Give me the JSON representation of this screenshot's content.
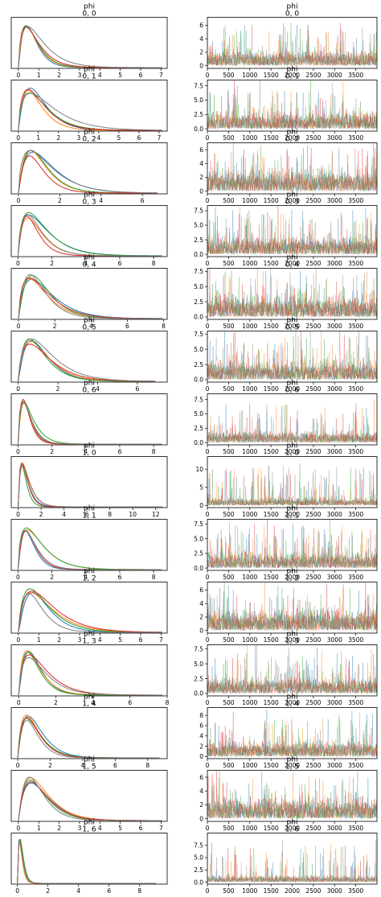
{
  "chart_data": {
    "type": "line",
    "variable": "phi",
    "series_colors": [
      "#1f77b4",
      "#ff7f0e",
      "#2ca02c",
      "#d62728",
      "#7f7f7f"
    ],
    "rows": [
      {
        "coords": "0, 0",
        "kde_xticks": [
          "0",
          "1",
          "2",
          "3",
          "4",
          "5",
          "6",
          "7"
        ],
        "kde_xlim": [
          -0.35,
          7.3
        ],
        "kde_peak": 0.4,
        "trace_yticks": [
          "0",
          "2",
          "4",
          "6"
        ],
        "trace_ylim": [
          -0.4,
          7.2
        ]
      },
      {
        "coords": "0, 1",
        "kde_xticks": [
          "0",
          "1",
          "2",
          "3",
          "4",
          "5",
          "6",
          "7"
        ],
        "kde_xlim": [
          -0.35,
          7.4
        ],
        "kde_peak": 0.55,
        "trace_yticks": [
          "0.0",
          "2.5",
          "5.0",
          "7.5"
        ],
        "trace_ylim": [
          -0.4,
          8.5
        ]
      },
      {
        "coords": "0, 2",
        "kde_xticks": [
          "0",
          "2",
          "4",
          "6"
        ],
        "kde_xlim": [
          -0.35,
          7.2
        ],
        "kde_peak": 0.6,
        "trace_yticks": [
          "0",
          "2",
          "4",
          "6"
        ],
        "trace_ylim": [
          -0.4,
          7.0
        ]
      },
      {
        "coords": "0, 3",
        "kde_xticks": [
          "0",
          "2",
          "4",
          "6",
          "8"
        ],
        "kde_xlim": [
          -0.4,
          8.8
        ],
        "kde_peak": 0.6,
        "trace_yticks": [
          "0.0",
          "2.5",
          "5.0",
          "7.5"
        ],
        "trace_ylim": [
          -0.4,
          8.4
        ]
      },
      {
        "coords": "0, 4",
        "kde_xticks": [
          "0",
          "2",
          "4",
          "6",
          "8"
        ],
        "kde_xlim": [
          -0.4,
          8.2
        ],
        "kde_peak": 0.7,
        "trace_yticks": [
          "0.0",
          "2.5",
          "5.0",
          "7.5"
        ],
        "trace_ylim": [
          -0.4,
          8.0
        ]
      },
      {
        "coords": "0, 5",
        "kde_xticks": [
          "0",
          "2",
          "4",
          "6"
        ],
        "kde_xlim": [
          -0.35,
          7.5
        ],
        "kde_peak": 0.6,
        "trace_yticks": [
          "0.0",
          "2.5",
          "5.0",
          "7.5"
        ],
        "trace_ylim": [
          -0.4,
          8.0
        ]
      },
      {
        "coords": "0, 6",
        "kde_xticks": [
          "0",
          "2",
          "4",
          "6",
          "8"
        ],
        "kde_xlim": [
          -0.4,
          8.8
        ],
        "kde_peak": 0.3,
        "trace_yticks": [
          "0.0",
          "2.5",
          "5.0",
          "7.5"
        ],
        "trace_ylim": [
          -0.4,
          8.5
        ]
      },
      {
        "coords": "1, 0",
        "kde_xticks": [
          "0",
          "2",
          "4",
          "6",
          "8",
          "10",
          "12"
        ],
        "kde_xlim": [
          -0.6,
          13.0
        ],
        "kde_peak": 0.35,
        "trace_yticks": [
          "0",
          "5",
          "10"
        ],
        "trace_ylim": [
          -0.6,
          13.5
        ]
      },
      {
        "coords": "1, 1",
        "kde_xticks": [
          "0",
          "2",
          "4",
          "6",
          "8"
        ],
        "kde_xlim": [
          -0.4,
          8.8
        ],
        "kde_peak": 0.5,
        "trace_yticks": [
          "0.0",
          "2.5",
          "5.0",
          "7.5"
        ],
        "trace_ylim": [
          -0.4,
          8.3
        ]
      },
      {
        "coords": "1, 2",
        "kde_xticks": [
          "0",
          "1",
          "2",
          "3",
          "4",
          "5",
          "6",
          "7"
        ],
        "kde_xlim": [
          -0.35,
          7.3
        ],
        "kde_peak": 0.6,
        "trace_yticks": [
          "0",
          "2",
          "4",
          "6"
        ],
        "trace_ylim": [
          -0.4,
          7.2
        ]
      },
      {
        "coords": "1, 3",
        "kde_xticks": [
          "0",
          "2",
          "4",
          "6",
          "8"
        ],
        "kde_xlim": [
          -0.4,
          8.0
        ],
        "kde_peak": 0.5,
        "trace_yticks": [
          "0.0",
          "2.5",
          "5.0",
          "7.5"
        ],
        "trace_ylim": [
          -0.4,
          8.2
        ]
      },
      {
        "coords": "1, 4",
        "kde_xticks": [
          "0",
          "2",
          "4",
          "6",
          "8"
        ],
        "kde_xlim": [
          -0.4,
          9.2
        ],
        "kde_peak": 0.6,
        "trace_yticks": [
          "0",
          "2",
          "4",
          "6",
          "8"
        ],
        "trace_ylim": [
          -0.4,
          9.5
        ]
      },
      {
        "coords": "1, 5",
        "kde_xticks": [
          "0",
          "1",
          "2",
          "3",
          "4",
          "5",
          "6",
          "7"
        ],
        "kde_xlim": [
          -0.35,
          7.3
        ],
        "kde_peak": 0.6,
        "trace_yticks": [
          "0",
          "2",
          "4",
          "6"
        ],
        "trace_ylim": [
          -0.4,
          7.0
        ]
      },
      {
        "coords": "1, 6",
        "kde_xticks": [
          "0",
          "2",
          "4",
          "6",
          "8"
        ],
        "kde_xlim": [
          -0.4,
          9.8
        ],
        "kde_peak": 0.15,
        "trace_yticks": [
          "0.0",
          "2.5",
          "5.0",
          "7.5"
        ],
        "trace_ylim": [
          -0.4,
          10.0
        ]
      }
    ],
    "trace_xticks": [
      "0",
      "500",
      "1000",
      "1500",
      "2000",
      "2500",
      "3000",
      "3500"
    ],
    "trace_xlim": [
      0,
      4000
    ],
    "draws_per_chain": 4000,
    "chains": 5,
    "grid": false,
    "legend": "none"
  }
}
